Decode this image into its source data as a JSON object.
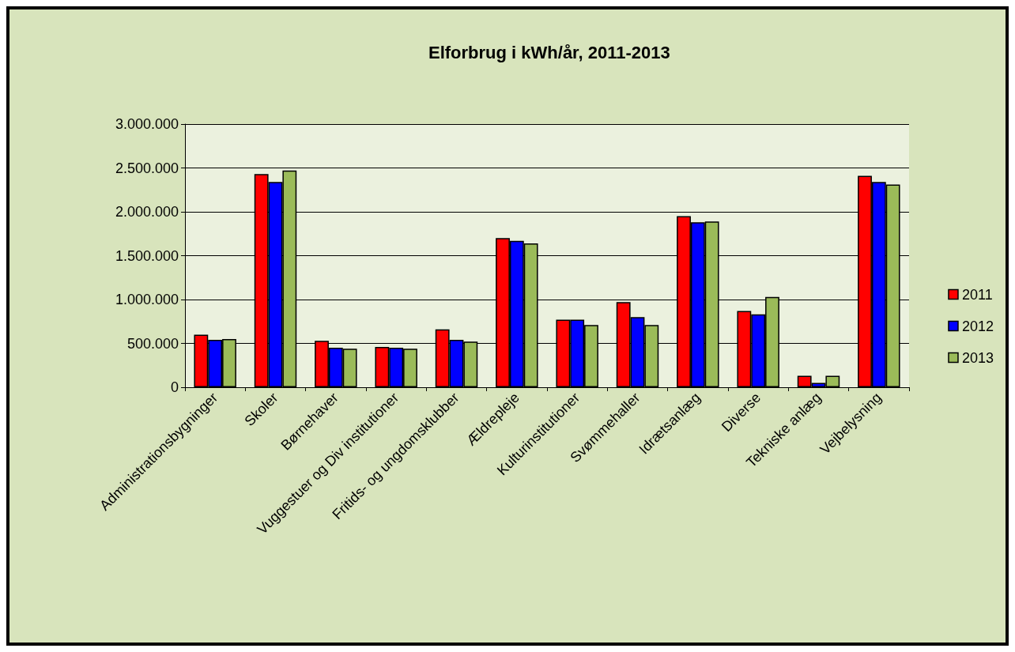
{
  "chart_data": {
    "type": "bar",
    "title": "Elforbrug i kWh/år, 2011-2013",
    "categories": [
      "Administrationsbygninger",
      "Skoler",
      "Børnehaver",
      "Vuggestuer og Div institutioner",
      "Fritids- og ungdomsklubber",
      "Ældrepleje",
      "Kulturinstitutioner",
      "Svømmehaller",
      "Idrætsanlæg",
      "Diverse",
      "Tekniske anlæg",
      "Vejbelysning"
    ],
    "series": [
      {
        "name": "2011",
        "color": "#ff0000",
        "values": [
          600000,
          2430000,
          530000,
          460000,
          660000,
          1700000,
          770000,
          970000,
          1950000,
          870000,
          130000,
          2410000
        ]
      },
      {
        "name": "2012",
        "color": "#0000ff",
        "values": [
          540000,
          2340000,
          450000,
          450000,
          540000,
          1670000,
          770000,
          800000,
          1880000,
          830000,
          50000,
          2340000
        ]
      },
      {
        "name": "2013",
        "color": "#9bbb59",
        "values": [
          550000,
          2470000,
          440000,
          440000,
          520000,
          1640000,
          710000,
          710000,
          1890000,
          1030000,
          130000,
          2310000
        ]
      }
    ],
    "ylim": [
      0,
      3000000
    ],
    "yticks": [
      {
        "value": 0,
        "label": "0"
      },
      {
        "value": 500000,
        "label": "500.000"
      },
      {
        "value": 1000000,
        "label": "1.000.000"
      },
      {
        "value": 1500000,
        "label": "1.500.000"
      },
      {
        "value": 2000000,
        "label": "2.000.000"
      },
      {
        "value": 2500000,
        "label": "2.500.000"
      },
      {
        "value": 3000000,
        "label": "3.000.000"
      }
    ],
    "grid": "y",
    "legend": "right"
  }
}
